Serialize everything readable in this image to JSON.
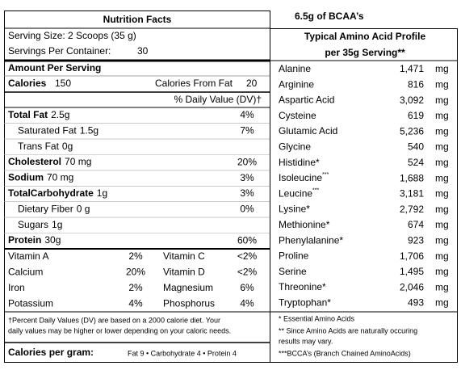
{
  "bcaa_heading": "6.5g of BCAA’s",
  "nutrition_facts": {
    "title": "Nutrition Facts",
    "serving_size": "Serving Size:  2 Scoops (35 g)",
    "servings_per_container": {
      "label": "Servings Per Container:",
      "value": "30"
    },
    "amount_per_serving": "Amount Per Serving",
    "calories": {
      "label": "Calories",
      "value": "150",
      "from_fat_label": "Calories From Fat",
      "from_fat_value": "20"
    },
    "dv_header": "% Daily Value (DV)†",
    "nutrients": [
      {
        "label": "Total Fat",
        "amount": "2.5g",
        "dv": "4%",
        "bold": true
      },
      {
        "label": "Saturated Fat",
        "amount": "1.5g",
        "dv": "7%",
        "indent": true
      },
      {
        "label": "Trans Fat",
        "amount": "0g",
        "indent": true
      },
      {
        "label": "Cholesterol",
        "amount": "70 mg",
        "dv": "20%",
        "bold": true
      },
      {
        "label": "Sodium",
        "amount": "70 mg",
        "dv": "3%",
        "bold": true
      },
      {
        "label": "TotalCarbohydrate",
        "amount": "1g",
        "dv": "3%",
        "bold": true
      },
      {
        "label": "Dietary Fiber",
        "amount": "0 g",
        "dv": "0%",
        "indent": true
      },
      {
        "label": "Sugars",
        "amount": "1g",
        "indent": true
      },
      {
        "label": "Protein",
        "amount": "30g",
        "dv": "60%",
        "bold": true
      }
    ],
    "vitamins": [
      [
        "Vitamin A",
        "2%",
        "Vitamin C",
        "<2%"
      ],
      [
        "Calcium",
        "20%",
        "Vitamin D",
        "<2%"
      ],
      [
        "Iron",
        "2%",
        "Magnesium",
        "6%"
      ],
      [
        "Potassium",
        "4%",
        "Phosphorus",
        "4%"
      ]
    ],
    "footnote": [
      "†Percent Daily Values (DV) are based on a 2000 calorie diet.  Your",
      "daily values may be higher or lower depending on your caloric needs."
    ],
    "calories_per_gram": {
      "label": "Calories  per gram:",
      "values": "Fat 9  •  Carbohydrate  4  •  Protein 4"
    }
  },
  "amino_profile": {
    "title": [
      "Typical Amino Acid Profile",
      "per 35g Serving**"
    ],
    "rows": [
      {
        "name": "Alanine",
        "amount": "1,471",
        "unit": "mg"
      },
      {
        "name": "Arginine",
        "amount": "816",
        "unit": "mg"
      },
      {
        "name": "Aspartic Acid",
        "amount": "3,092",
        "unit": "mg"
      },
      {
        "name": "Cysteine",
        "amount": "619",
        "unit": "mg"
      },
      {
        "name": "Glutamic Acid",
        "amount": "5,236",
        "unit": "mg"
      },
      {
        "name": "Glycine",
        "amount": "540",
        "unit": "mg"
      },
      {
        "name": "Histidine*",
        "amount": "524",
        "unit": "mg"
      },
      {
        "name": "Isoleucine",
        "sup": "***",
        "amount": "1,688",
        "unit": "mg"
      },
      {
        "name": "Leucine",
        "sup": "***",
        "amount": "3,181",
        "unit": "mg"
      },
      {
        "name": "Lysine*",
        "amount": "2,792",
        "unit": "mg"
      },
      {
        "name": "Methionine*",
        "amount": "674",
        "unit": "mg"
      },
      {
        "name": "Phenylalanine*",
        "amount": "923",
        "unit": "mg"
      },
      {
        "name": "Proline",
        "amount": "1,706",
        "unit": "mg"
      },
      {
        "name": "Serine",
        "amount": "1,495",
        "unit": "mg"
      },
      {
        "name": "Threonine*",
        "amount": "2,046",
        "unit": "mg"
      },
      {
        "name": "Tryptophan*",
        "amount": "493",
        "unit": "mg"
      }
    ],
    "footnotes": [
      "* Essential Amino Acids",
      "** Since Amino Acids are naturally occuring",
      "results may vary.",
      "***BCCA’s (Branch Chained AminoAcids)"
    ]
  }
}
